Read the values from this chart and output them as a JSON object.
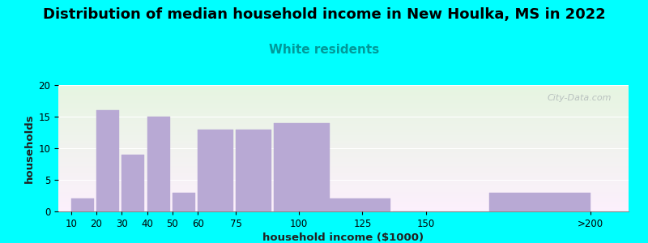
{
  "title": "Distribution of median household income in New Houlka, MS in 2022",
  "subtitle": "White residents",
  "xlabel": "household income ($1000)",
  "ylabel": "households",
  "bar_lefts": [
    10,
    20,
    30,
    40,
    50,
    60,
    75,
    90,
    112,
    137,
    175
  ],
  "bar_widths": [
    9,
    9,
    9,
    9,
    9,
    14,
    14,
    22,
    24,
    12,
    40
  ],
  "bar_values": [
    2,
    16,
    9,
    15,
    3,
    13,
    13,
    14,
    2,
    0,
    3
  ],
  "bar_xticks": [
    10,
    20,
    30,
    40,
    50,
    60,
    75,
    100,
    125,
    150
  ],
  "bar_xtick_labels": [
    "10",
    "20",
    "30",
    "40",
    "50",
    "60",
    "75",
    "100",
    "125",
    "150"
  ],
  "extra_tick_x": 215,
  "extra_tick_label": ">200",
  "bar_color": "#b8a9d4",
  "bar_edge_color": "#b8a9d4",
  "ylim": [
    0,
    20
  ],
  "yticks": [
    0,
    5,
    10,
    15,
    20
  ],
  "xlim": [
    5,
    230
  ],
  "bg_outer": "#00ffff",
  "title_fontsize": 13,
  "subtitle_fontsize": 11,
  "subtitle_color": "#009999",
  "axis_label_fontsize": 9.5,
  "tick_fontsize": 8.5,
  "watermark_text": "City-Data.com",
  "watermark_color": "#b0b8b8"
}
